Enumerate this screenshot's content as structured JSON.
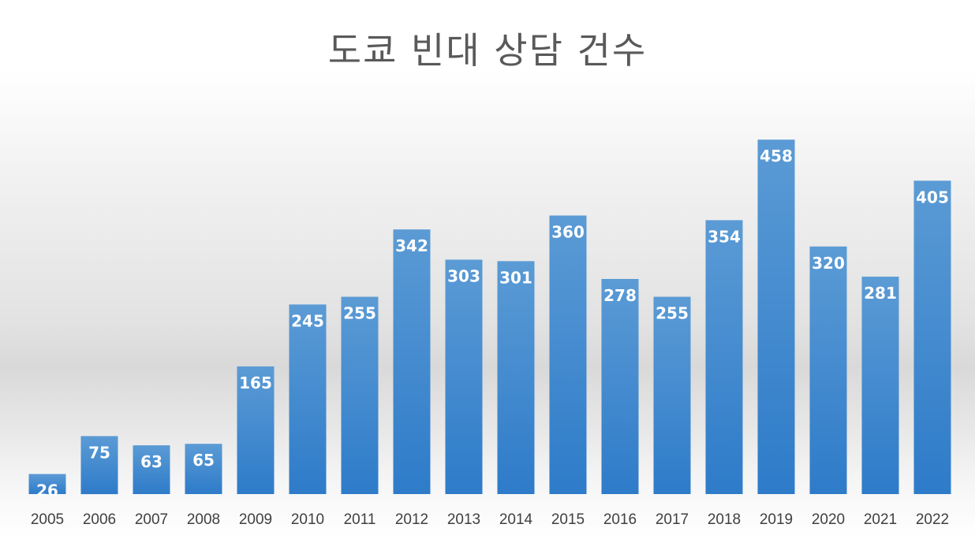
{
  "chart_data": {
    "type": "bar",
    "title": "도쿄 빈대 상담 건수",
    "xlabel": "",
    "ylabel": "",
    "categories": [
      "2005",
      "2006",
      "2007",
      "2008",
      "2009",
      "2010",
      "2011",
      "2012",
      "2013",
      "2014",
      "2015",
      "2016",
      "2017",
      "2018",
      "2019",
      "2020",
      "2021",
      "2022"
    ],
    "values": [
      26,
      75,
      63,
      65,
      165,
      245,
      255,
      342,
      303,
      301,
      360,
      278,
      255,
      354,
      458,
      320,
      281,
      405
    ],
    "ylim": [
      0,
      500
    ],
    "grid": false,
    "legend": "none",
    "colors": {
      "bar_top": "#5b9bd5",
      "bar_bottom": "#2e7bc9",
      "label": "#ffffff",
      "title": "#595959",
      "tick": "#404040"
    }
  }
}
